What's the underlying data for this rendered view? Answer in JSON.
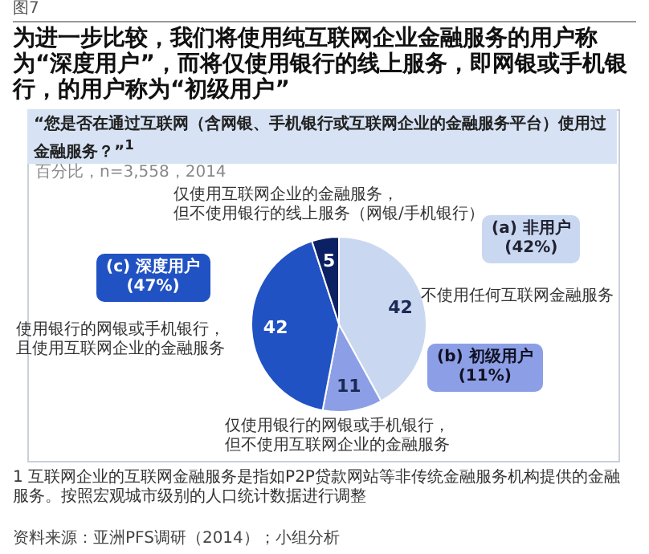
{
  "chart_data": {
    "type": "pie",
    "title": "为进一步比较，我们将使用纯互联网企业金融服务的用户称为“深度用户”，而将仅使用银行的线上服务，即网银或手机银行，的用户称为“初级用户”",
    "subtitle": "“您是否在通过互联网（含网银、手机银行或互联网企业的金融服务平台）使用过金融服务？”$^{1}$",
    "categories": [
      null,
      null,
      null,
      null
    ],
    "values": [
      42,
      11,
      42,
      5
    ],
    "colors": [
      "#c9d8f0",
      "#8c9fe6",
      "#2152c4",
      "#0c2163"
    ],
    "data_labels": true,
    "annotations": [
      "图7",
      "百分比，n=3,558，2014",
      "仅使用互联网企业的金融服务，但不使用银行的线上服务（网银/手机银行）",
      "不使用任何互联网金融服务",
      "使用银行的网银或手机银行，且使用互联网企业的金融服务",
      "仅使用银行的网银或手机银行，但不使用互联网企业的金融服务",
      "(a) 非用户\n(42%)",
      "(b) 初级用户\n(11%)",
      "(c) 深度用户\n(47%)",
      "1 互联网企业的互联网金融服务是指如P2P贷款网站等非传统金融服务机构提供的金融服务。按照宏观城市级别的人口统计数据进行调整",
      "资料来源：亚洲PFS调研（2014）；小组分析"
    ]
  }
}
